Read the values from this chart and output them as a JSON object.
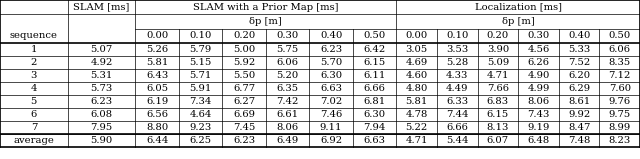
{
  "rows": [
    [
      "1",
      "5.07",
      "5.26",
      "5.79",
      "5.00",
      "5.75",
      "6.23",
      "6.42",
      "3.05",
      "3.53",
      "3.90",
      "4.56",
      "5.33",
      "6.06"
    ],
    [
      "2",
      "4.92",
      "5.81",
      "5.15",
      "5.92",
      "6.06",
      "5.70",
      "6.15",
      "4.69",
      "5.28",
      "5.09",
      "6.26",
      "7.52",
      "8.35"
    ],
    [
      "3",
      "5.31",
      "6.43",
      "5.71",
      "5.50",
      "5.20",
      "6.30",
      "6.11",
      "4.60",
      "4.33",
      "4.71",
      "4.90",
      "6.20",
      "7.12"
    ],
    [
      "4",
      "5.73",
      "6.05",
      "5.91",
      "6.77",
      "6.35",
      "6.63",
      "6.66",
      "4.80",
      "4.49",
      "7.66",
      "4.99",
      "6.29",
      "7.60"
    ],
    [
      "5",
      "6.23",
      "6.19",
      "7.34",
      "6.27",
      "7.42",
      "7.02",
      "6.81",
      "5.81",
      "6.33",
      "6.83",
      "8.06",
      "8.61",
      "9.76"
    ],
    [
      "6",
      "6.08",
      "6.56",
      "4.64",
      "6.69",
      "6.61",
      "7.46",
      "6.30",
      "4.78",
      "7.44",
      "6.15",
      "7.43",
      "9.92",
      "9.75"
    ],
    [
      "7",
      "7.95",
      "8.80",
      "9.23",
      "7.45",
      "8.06",
      "9.11",
      "7.94",
      "5.22",
      "6.66",
      "8.13",
      "9.19",
      "8.47",
      "8.99"
    ]
  ],
  "average_row": [
    "average",
    "5.90",
    "6.44",
    "6.25",
    "6.23",
    "6.49",
    "6.92",
    "6.63",
    "4.71",
    "5.44",
    "6.07",
    "6.48",
    "7.48",
    "8.23"
  ],
  "bg_color": "#ffffff",
  "line_color": "#000000",
  "font_size": 7.2,
  "dp_vals": [
    "0.00",
    "0.10",
    "0.20",
    "0.30",
    "0.40",
    "0.50"
  ]
}
